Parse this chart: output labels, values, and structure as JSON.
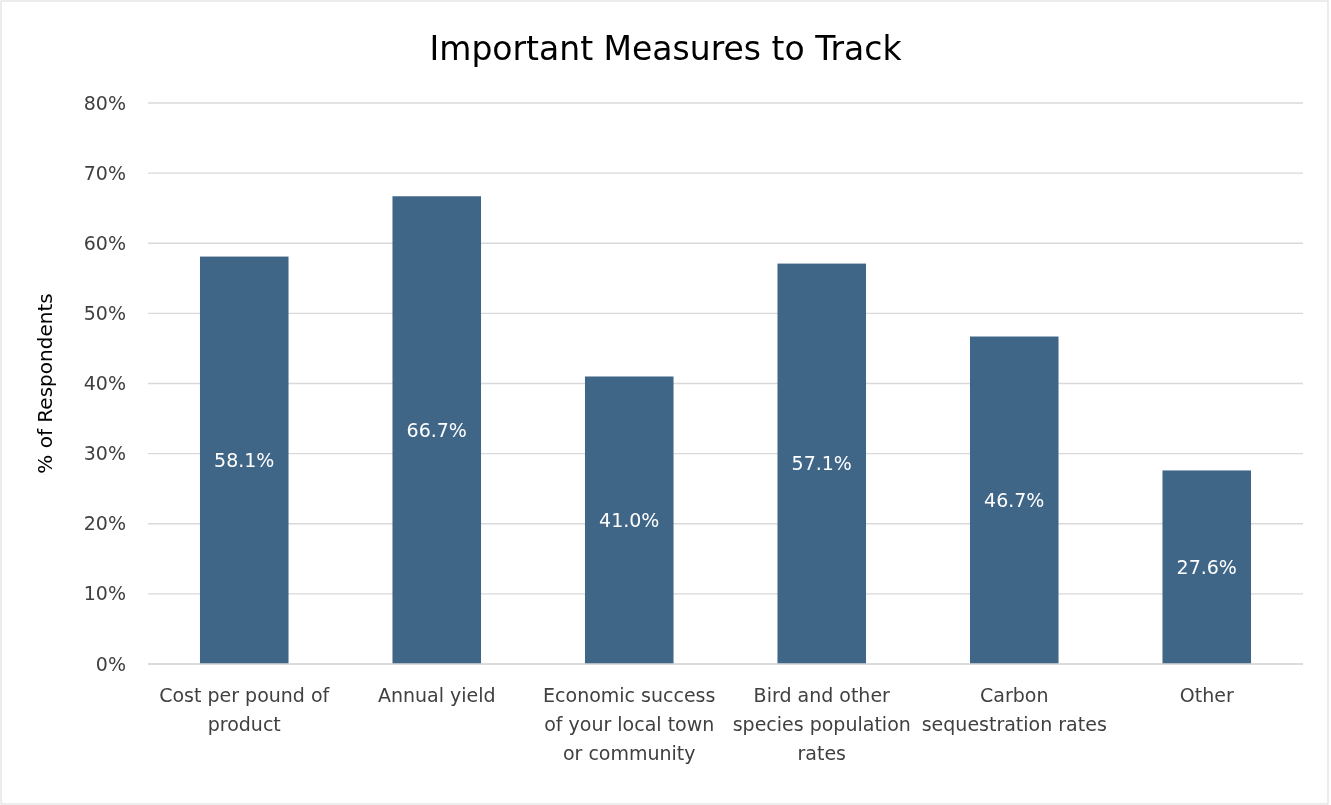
{
  "chart_data": {
    "type": "bar",
    "title": "Important Measures to Track",
    "ylabel": "% of Respondents",
    "categories": [
      "Cost per pound of product",
      "Annual yield",
      "Economic success of your local town or community",
      "Bird and other species population rates",
      "Carbon sequestration rates",
      "Other"
    ],
    "values": [
      58.1,
      66.7,
      41.0,
      57.1,
      46.7,
      27.6
    ],
    "value_labels": [
      "58.1%",
      "66.7%",
      "41.0%",
      "57.1%",
      "46.7%",
      "27.6%"
    ],
    "color": "#3f6587",
    "ylim": [
      0,
      80
    ],
    "yticks": [
      {
        "value": 0,
        "label": "0%"
      },
      {
        "value": 10,
        "label": "10%"
      },
      {
        "value": 20,
        "label": "20%"
      },
      {
        "value": 30,
        "label": "30%"
      },
      {
        "value": 40,
        "label": "40%"
      },
      {
        "value": 50,
        "label": "50%"
      },
      {
        "value": 60,
        "label": "60%"
      },
      {
        "value": 70,
        "label": "70%"
      },
      {
        "value": 80,
        "label": "80%"
      }
    ],
    "grid": "y"
  }
}
